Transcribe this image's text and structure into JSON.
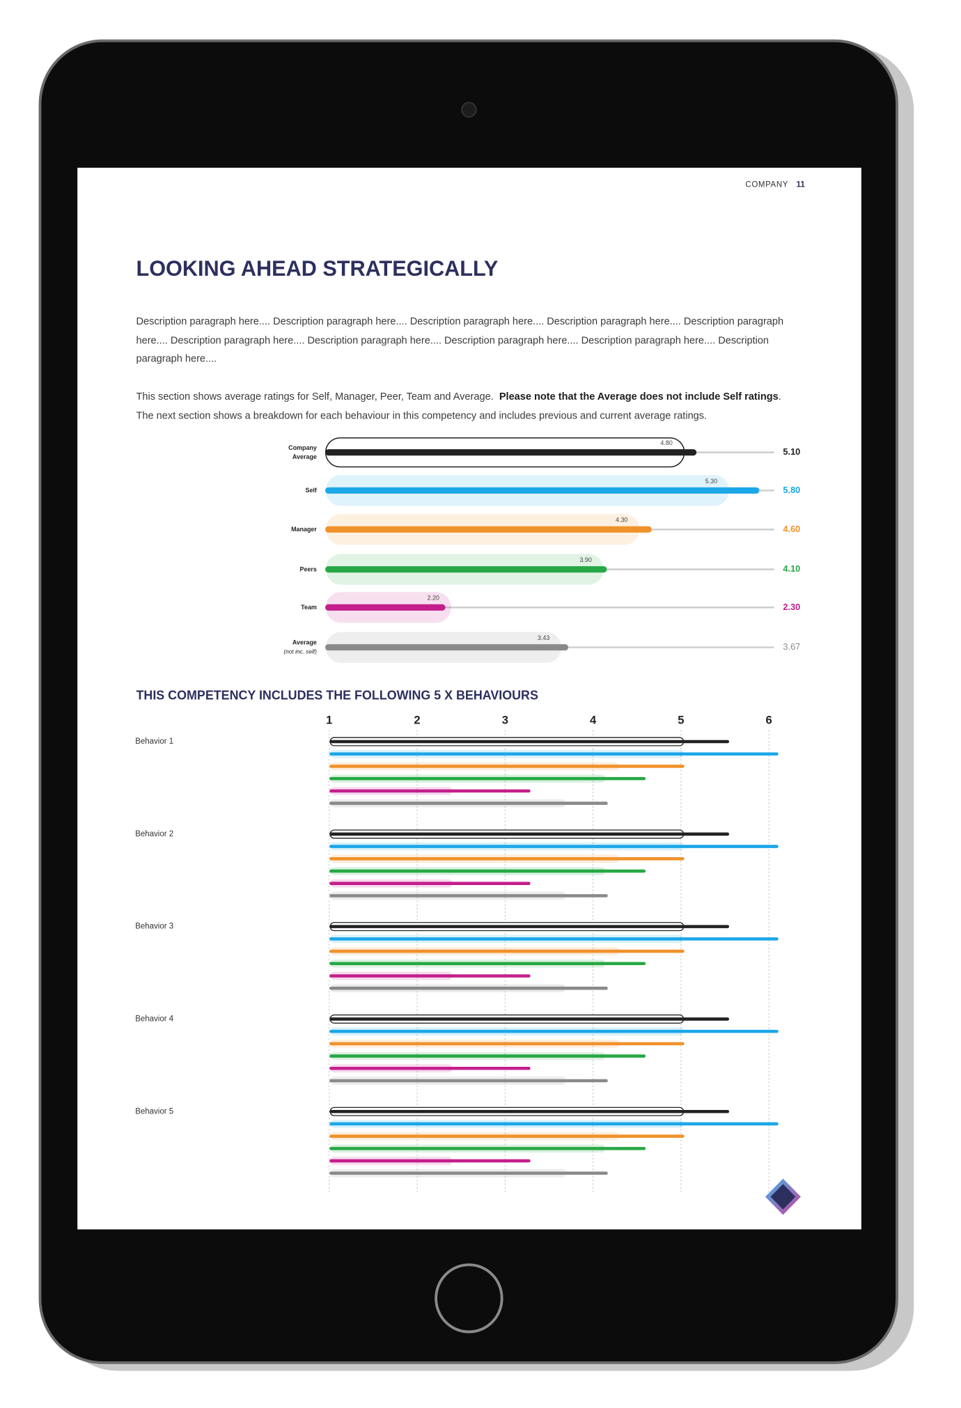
{
  "header": {
    "section": "COMPANY",
    "page": "11"
  },
  "title": "LOOKING AHEAD STRATEGICALLY",
  "description": "Description paragraph here.... Description paragraph here.... Description paragraph here.... Description paragraph here.... Description paragraph here.... Description paragraph here.... Description paragraph here.... Description paragraph here.... Description paragraph here.... Description paragraph here....",
  "note": {
    "text1": "This section shows average ratings for Self, Manager, Peer, Team and Average.",
    "bold": "Please note that the Average does not include Self ratings",
    "text2": ". The next section shows a breakdown for each behaviour in this competency and includes previous and current average ratings."
  },
  "chart_data": [
    {
      "type": "bar",
      "categories": [
        "Company Average",
        "Self",
        "Manager",
        "Peers",
        "Team",
        "Average"
      ],
      "category_note": "(not inc. self)",
      "values": [
        5.1,
        5.8,
        4.6,
        4.1,
        2.3,
        3.67
      ],
      "value_labels": [
        "5.10",
        "5.80",
        "4.60",
        "4.10",
        "2.30",
        "3.67"
      ],
      "previous": [
        4.8,
        5.3,
        4.3,
        3.9,
        2.2,
        3.43
      ],
      "previous_labels": [
        "4.80",
        "5.30",
        "4.30",
        "3.90",
        "2.20",
        "3.43"
      ],
      "colors": [
        "#222222",
        "#1ba7e8",
        "#f0922b",
        "#27a844",
        "#c41e8c",
        "#8a8a8a"
      ],
      "xlim": [
        1,
        6
      ]
    },
    {
      "type": "bar",
      "title": "THIS COMPETENCY INCLUDES THE FOLLOWING 5 X BEHAVIOURS",
      "categories": [
        "Behavior 1",
        "Behavior 2",
        "Behavior 3",
        "Behavior 4",
        "Behavior 5"
      ],
      "xlim": [
        1,
        6.1
      ],
      "xticks": [
        1,
        2,
        3,
        4,
        5,
        6
      ],
      "grid": true,
      "series": [
        {
          "color": "#222222",
          "outline": true,
          "values": [
            5.53,
            5.53,
            5.53,
            5.53,
            5.53
          ],
          "previous": [
            5.03,
            5.03,
            5.03,
            5.03,
            5.03
          ]
        },
        {
          "color": "#1ba7e8",
          "values": [
            6.09,
            6.09,
            6.09,
            6.09,
            6.09
          ],
          "previous": [
            5.03,
            5.03,
            5.03,
            5.03,
            5.03
          ]
        },
        {
          "color": "#f0922b",
          "values": [
            5.02,
            5.02,
            5.02,
            5.02,
            5.02
          ],
          "previous": [
            4.3,
            4.3,
            4.3,
            4.3,
            4.3
          ]
        },
        {
          "color": "#27a844",
          "values": [
            4.58,
            4.58,
            4.58,
            4.58,
            4.58
          ],
          "previous": [
            4.14,
            4.14,
            4.14,
            4.14,
            4.14
          ]
        },
        {
          "color": "#c41e8c",
          "values": [
            3.27,
            3.27,
            3.27,
            3.27,
            3.27
          ],
          "previous": [
            2.4,
            2.4,
            2.4,
            2.4,
            2.4
          ]
        },
        {
          "color": "#8a8a8a",
          "values": [
            4.15,
            4.15,
            4.15,
            4.15,
            4.15
          ],
          "previous": [
            3.69,
            3.69,
            3.69,
            3.69,
            3.69
          ]
        }
      ]
    }
  ]
}
